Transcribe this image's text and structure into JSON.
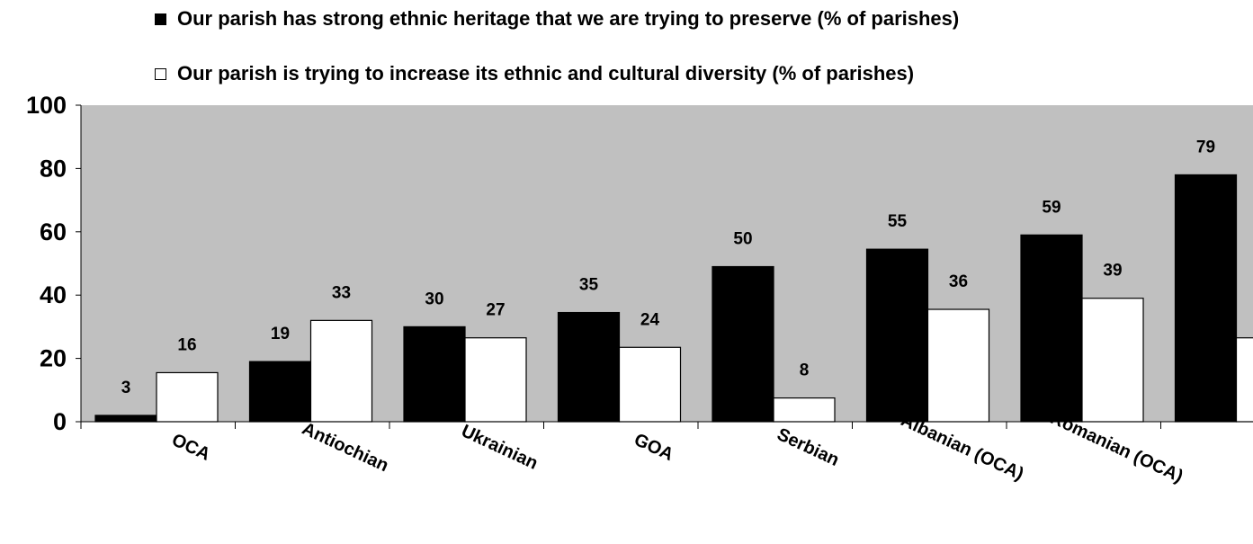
{
  "chart_data": {
    "type": "bar",
    "categories": [
      "OCA",
      "Antiochian",
      "Ukrainian",
      "GOA",
      "Serbian",
      "Albanian (OCA)",
      "Romanian (OCA)",
      ""
    ],
    "series": [
      {
        "name": "Our parish has strong ethnic heritage that we are trying to preserve (% of parishes)",
        "color": "#000000",
        "values": [
          3,
          19,
          30,
          35,
          50,
          55,
          59,
          79
        ],
        "bar_values": [
          2,
          19,
          30,
          34.5,
          49,
          54.5,
          59,
          78
        ]
      },
      {
        "name": "Our parish is trying to increase its ethnic and cultural diversity (% of parishes)",
        "color": "#ffffff",
        "values": [
          16,
          33,
          27,
          24,
          8,
          36,
          39,
          null
        ],
        "bar_values": [
          15.5,
          32,
          26.5,
          23.5,
          7.5,
          35.5,
          39,
          26.5
        ]
      }
    ],
    "yticks": [
      "0",
      "20",
      "40",
      "60",
      "80",
      "100"
    ],
    "ylim": [
      0,
      100
    ],
    "plot_background": "#c0c0c0",
    "legend_position": "top"
  }
}
